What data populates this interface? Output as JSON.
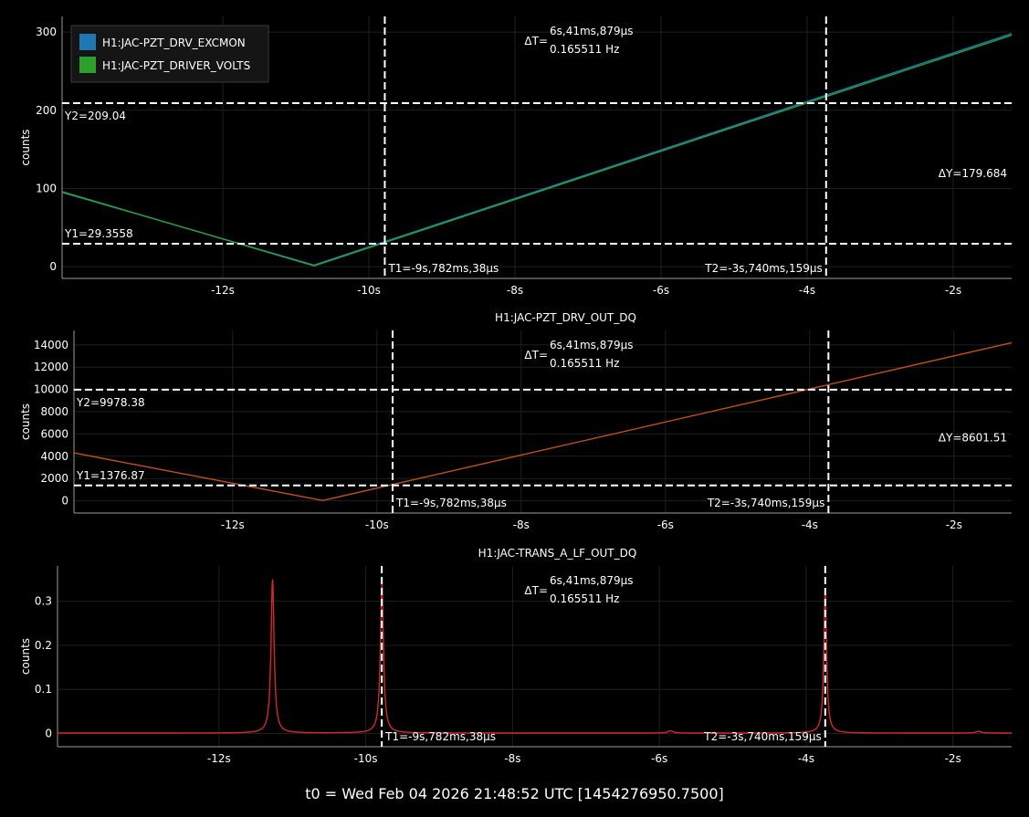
{
  "footer": {
    "t0_label": "t0 = Wed Feb 04 2026 21:48:52 UTC [1454276950.7500]"
  },
  "chart_data": [
    {
      "type": "line",
      "title": "",
      "ylabel": "counts",
      "xlim": [
        -14.2,
        -1.2
      ],
      "ylim": [
        -15,
        320
      ],
      "yticks": [
        0,
        100,
        200,
        300
      ],
      "xticks": [
        -12,
        -10,
        -8,
        -6,
        -4,
        -2
      ],
      "xtick_labels": [
        "-12s",
        "-10s",
        "-8s",
        "-6s",
        "-4s",
        "-2s"
      ],
      "legend": {
        "position": "top-left",
        "entries": [
          {
            "name": "H1:JAC-PZT_DRV_EXCMON",
            "color": "#1f77b4"
          },
          {
            "name": "H1:JAC-PZT_DRIVER_VOLTS",
            "color": "#2ca02c"
          }
        ]
      },
      "series": [
        {
          "name": "H1:JAC-PZT_DRV_EXCMON",
          "color": "#1f77b4",
          "x": [
            -14.2,
            -10.75,
            -1.2
          ],
          "y": [
            95,
            2,
            298
          ]
        },
        {
          "name": "H1:JAC-PZT_DRIVER_VOLTS",
          "color": "#2ca02c",
          "x": [
            -14.2,
            -10.75,
            -1.2
          ],
          "y": [
            96,
            1,
            296
          ]
        }
      ],
      "cursors": {
        "T1": -9.782,
        "T2": -3.74,
        "Y1": 29.3558,
        "Y2": 209.04,
        "T1_label": "T1=-9s,782ms,38μs",
        "T2_label": "T2=-3s,740ms,159μs",
        "Y1_label": "Y1=29.3558",
        "Y2_label": "Y2=209.04",
        "dT_label": "ΔT=",
        "dT_value": "6s,41ms,879μs",
        "freq_label": "0.165511 Hz",
        "dY_label": "ΔY=179.684"
      }
    },
    {
      "type": "line",
      "title": "H1:JAC-PZT_DRV_OUT_DQ",
      "ylabel": "counts",
      "xlim": [
        -14.2,
        -1.2
      ],
      "ylim": [
        -1100,
        15300
      ],
      "yticks": [
        0,
        2000,
        4000,
        6000,
        8000,
        10000,
        12000,
        14000
      ],
      "xticks": [
        -12,
        -10,
        -8,
        -6,
        -4,
        -2
      ],
      "xtick_labels": [
        "-12s",
        "-10s",
        "-8s",
        "-6s",
        "-4s",
        "-2s"
      ],
      "series": [
        {
          "name": "H1:JAC-PZT_DRV_OUT_DQ",
          "color": "#c0501f",
          "x": [
            -14.2,
            -10.75,
            -1.2
          ],
          "y": [
            4300,
            20,
            14200
          ]
        }
      ],
      "cursors": {
        "T1": -9.782,
        "T2": -3.74,
        "Y1": 1376.87,
        "Y2": 9978.38,
        "T1_label": "T1=-9s,782ms,38μs",
        "T2_label": "T2=-3s,740ms,159μs",
        "Y1_label": "Y1=1376.87",
        "Y2_label": "Y2=9978.38",
        "dT_label": "ΔT=",
        "dT_value": "6s,41ms,879μs",
        "freq_label": "0.165511 Hz",
        "dY_label": "ΔY=8601.51"
      }
    },
    {
      "type": "line",
      "title": "H1:JAC-TRANS_A_LF_OUT_DQ",
      "ylabel": "counts",
      "xlim": [
        -14.2,
        -1.2
      ],
      "ylim": [
        -0.03,
        0.38
      ],
      "yticks": [
        0,
        0.1,
        0.2,
        0.3
      ],
      "xticks": [
        -12,
        -10,
        -8,
        -6,
        -4,
        -2
      ],
      "xtick_labels": [
        "-12s",
        "-10s",
        "-8s",
        "-6s",
        "-4s",
        "-2s"
      ],
      "series": [
        {
          "name": "H1:JAC-TRANS_A_LF_OUT_DQ",
          "color": "#d62728",
          "baseline": 0.001,
          "peaks": [
            {
              "x": -11.27,
              "height": 0.35,
              "width": 0.025
            },
            {
              "x": -9.78,
              "height": 0.34,
              "width": 0.025
            },
            {
              "x": -3.74,
              "height": 0.33,
              "width": 0.022
            },
            {
              "x": -5.85,
              "height": 0.005,
              "width": 0.04
            },
            {
              "x": -1.65,
              "height": 0.004,
              "width": 0.04
            }
          ]
        }
      ],
      "cursors": {
        "T1": -9.782,
        "T2": -3.74,
        "T1_label": "T1=-9s,782ms,38μs",
        "T2_label": "T2=-3s,740ms,159μs",
        "dT_label": "ΔT=",
        "dT_value": "6s,41ms,879μs",
        "freq_label": "0.165511 Hz"
      }
    }
  ]
}
